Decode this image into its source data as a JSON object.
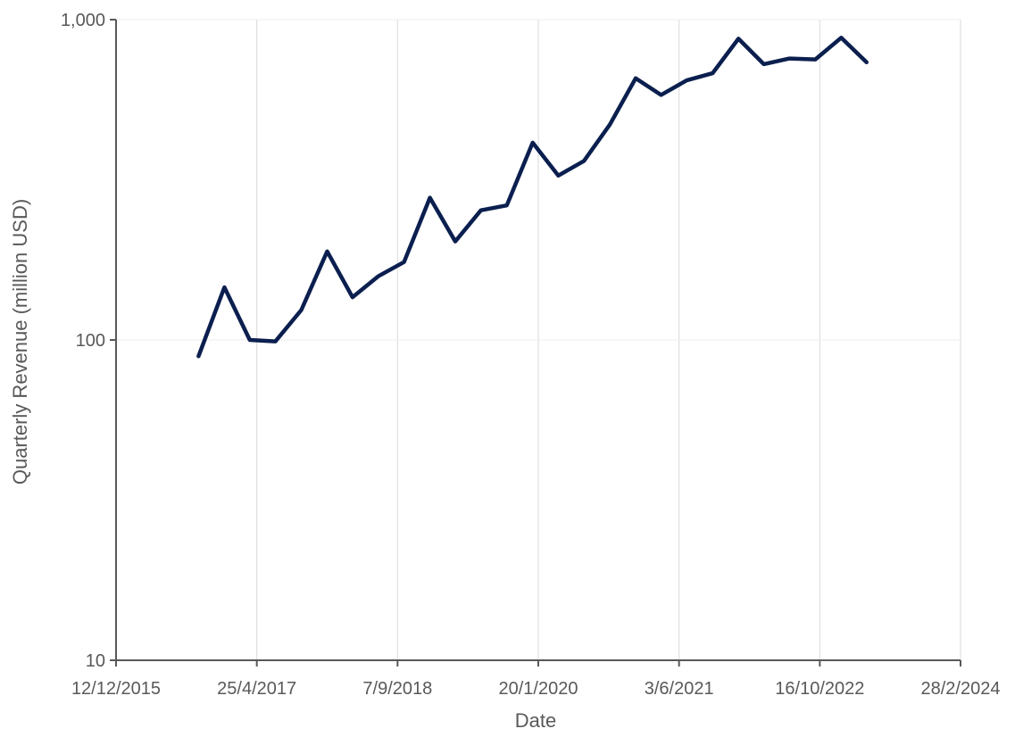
{
  "chart_data": {
    "type": "line",
    "xlabel": "Date",
    "ylabel": "Quarterly Revenue (million USD)",
    "yscale": "log",
    "ylim": [
      10,
      1000
    ],
    "xlim": [
      "2015-12-12",
      "2024-02-28"
    ],
    "x_ticks": [
      "12/12/2015",
      "25/4/2017",
      "7/9/2018",
      "20/1/2020",
      "3/6/2021",
      "16/10/2022",
      "28/2/2024"
    ],
    "y_ticks": [
      "10",
      "100",
      "1,000"
    ],
    "grid": true,
    "legend": "none",
    "line_color": "#0b1f4f",
    "series": [
      {
        "x": [
          "2016-09-30",
          "2016-12-31",
          "2017-03-31",
          "2017-06-30",
          "2017-09-30",
          "2017-12-31",
          "2018-03-31",
          "2018-06-30",
          "2018-09-30",
          "2018-12-31",
          "2019-03-31",
          "2019-06-30",
          "2019-09-30",
          "2019-12-31",
          "2020-03-31",
          "2020-06-30",
          "2020-09-30",
          "2020-12-31",
          "2021-03-31",
          "2021-06-30",
          "2021-09-30",
          "2021-12-31",
          "2022-03-31",
          "2022-06-30",
          "2022-09-30",
          "2022-12-31",
          "2023-03-31"
        ],
        "values": [
          89,
          146,
          100,
          99,
          124,
          189,
          136,
          158,
          175,
          278,
          203,
          254,
          263,
          413,
          326,
          362,
          470,
          656,
          582,
          646,
          680,
          872,
          726,
          756,
          751,
          878,
          736
        ]
      }
    ]
  }
}
